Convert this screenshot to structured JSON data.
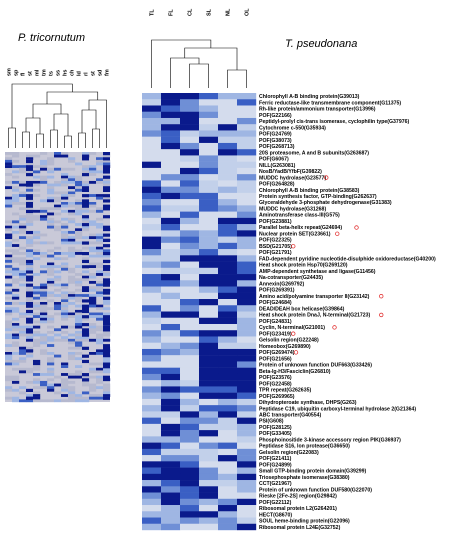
{
  "figure": {
    "left_panel": {
      "title": "P. tricornutum",
      "columns": [
        "sm",
        "sp",
        "fl",
        "st",
        "ml",
        "tm",
        "ts",
        "ss",
        "hs",
        "ch",
        "ld",
        "rl",
        "st",
        "sd",
        "fm"
      ]
    },
    "right_panel": {
      "title": "T. pseudonana",
      "columns": [
        "TL",
        "FL",
        "CL",
        "SL",
        "NL",
        "OL"
      ],
      "genes": [
        "Chlorophyll A-B binding protein(G39013)",
        "Ferric reductase-like transmembrane component(G11375)",
        "Rh-like protein/ammonium transporter(G13996)",
        "POF(G22166)",
        "Peptidyl-prolyl cis-trans isomerase, cyclophilin type(G37976)",
        "Cytochrome c-550(G35934)",
        "POF(G24769)",
        "POF(G38073)",
        "POF(G268713)",
        "20S proteasome, A and B subunits(G263687)",
        "POF(G6067)",
        "NILL(G263081)",
        "NosB/YadB/YfbF(G39822)",
        "MUDDC hydrolase(G23577)",
        "POF(G264828)",
        "Chlorophyll A-B binding protein(G38583)",
        "Protein synthesis factor, GTP-binding(G262637)",
        "Glyceraldehyde 3-phosphate dehydrogenase(G31383)",
        "MUDDC hydrolase(G31268)",
        "Aminotransferase class-III(G575)",
        "POF(G23881)",
        "Parallel beta-helix repeat(G24694)",
        "Nuclear protein SET(G23661)",
        "POF(G22325)",
        "BSD(G21705)",
        "POF(G21791)",
        "FAD-dependent pyridine nucleotide-disulphide oxidoreductase(G40200)",
        "Heat shock protein Hsp70(G269120)",
        "AMP-dependent synthetase and ligase(G11456)",
        "Na-cotransporter(G24435)",
        "Annexin(G269792)",
        "POF(G269391)",
        "Amino acid/polyamine transporter II(G23142)",
        "POF(G24684)",
        "DEAD/DEAH box helicase(G39864)",
        "Heat shock protein DnaJ, N-terminal(G21723)",
        "POF(G24831)",
        "Cyclin, N-terminal(G21001)",
        "POF(G23419)",
        "Gelsolin region(G22248)",
        "Homeobox(G269890)",
        "POF(G269474)",
        "POF(G21656)",
        "Protein of unknown function DUF663(G33426)",
        "Beta-lg-H3/Fasciclin(G26810)",
        "POF(G23576)",
        "POF(G22458)",
        "TPR repeat(G262635)",
        "POF(G269965)",
        "Dihydropteroate synthase, DHPS(G263)",
        "Peptidase C19, ubiquitin carboxyl-terminal hydrolase 2(G21364)",
        "ABC transporter(G40554)",
        "PSI(G608)",
        "POF(G28125)",
        "POF(G33405)",
        "Phosphoinositide 3-kinase accessory region PIK(G36937)",
        "Peptidase S16, lon protease(G36650)",
        "Gelsolin region(G22083)",
        "POF(G21411)",
        "POF(G24899)",
        "Small GTP-binding protein domain(G39299)",
        "Triosephosphate isomerase(G38380)",
        "CCT(G21967)",
        "Protein of unknown function DUF580(G22070)",
        "Rieske [2Fe-2S] region(G29842)",
        "POF(G22112)",
        "Ribosomal protein L2(G264201)",
        "HECT(G8670)",
        "SOUL heme-binding protein(G22096)",
        "Ribosomal protein L24E(G32752)"
      ],
      "marked_genes": [
        "MUDDC hydrolase(G23577)",
        "Parallel beta-helix repeat(G24694)",
        "Nuclear protein SET(G23661)",
        "BSD(G21705)",
        "Amino acid/polyamine transporter II(G23142)",
        "Heat shock protein DnaJ, N-terminal(G21723)",
        "Cyclin, N-terminal(G21001)",
        "POF(G23419)",
        "POF(G269474)"
      ]
    },
    "colors": {
      "dark": "#0a1a8c",
      "mid": "#3a5fc4",
      "light": "#9fb6e3",
      "pale": "#d4dced",
      "grey": "#c8c8d0",
      "marker": "#e02020"
    }
  }
}
